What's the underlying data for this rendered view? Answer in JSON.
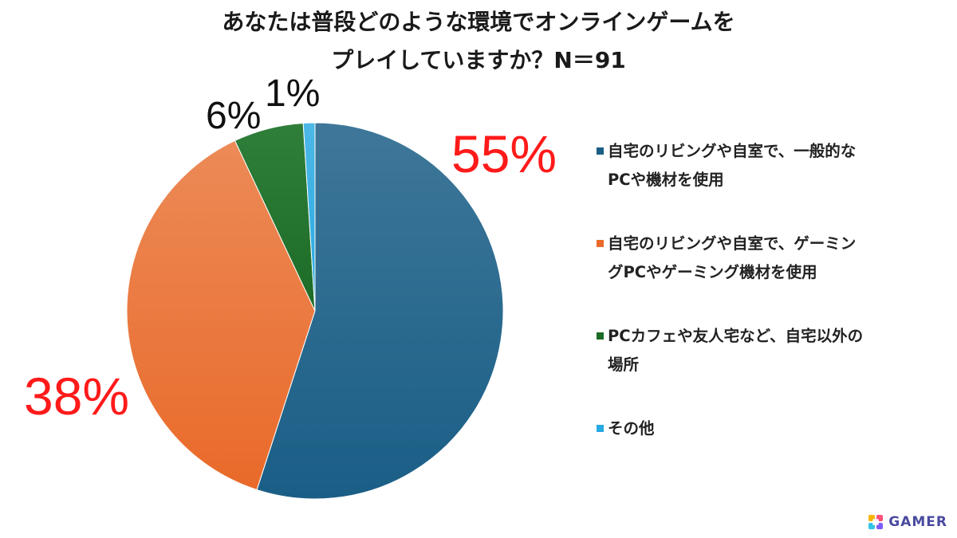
{
  "title": {
    "line1": "あなたは普段どのような環境でオンラインゲームを",
    "line2": "プレイしていますか？N＝91"
  },
  "chart_data": {
    "type": "pie",
    "slices": [
      {
        "label": "自宅のリビングや自室で、一般的なPCや機材を使用",
        "legend_lines": [
          "自宅のリビングや自室で、一般的な",
          "PCや機材を使用"
        ],
        "value": 55,
        "display": "55%",
        "color": "#1a5e86",
        "color_light": "#3e7799"
      },
      {
        "label": "自宅のリビングや自室で、ゲーミングPCやゲーミング機材を使用",
        "legend_lines": [
          "自宅のリビングや自室で、ゲーミン",
          "グPCやゲーミング機材を使用"
        ],
        "value": 38,
        "display": "38%",
        "color": "#e96a2a",
        "color_light": "#ec8a57"
      },
      {
        "label": "PCカフェや友人宅など、自宅以外の場所",
        "legend_lines": [
          "PCカフェや友人宅など、自宅以外の",
          "場所"
        ],
        "value": 6,
        "display": "6%",
        "color": "#1c6b26",
        "color_light": "#2f7e3a"
      },
      {
        "label": "その他",
        "legend_lines": [
          "その他"
        ],
        "value": 1,
        "display": "1%",
        "color": "#27a9e1",
        "color_light": "#4cb8e6"
      }
    ]
  },
  "brand": {
    "name": "GAMER",
    "icon": "gamer-logo-icon"
  }
}
